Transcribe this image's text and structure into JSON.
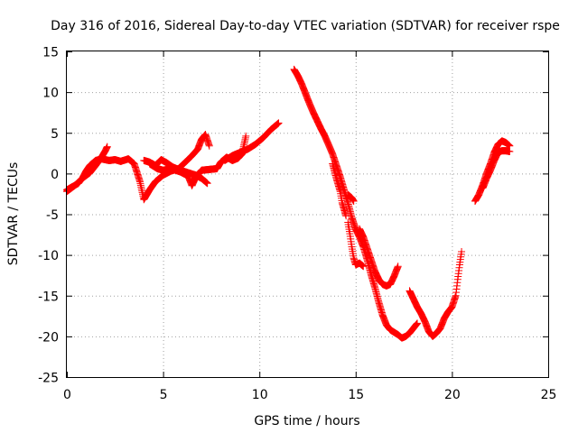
{
  "chart_data": {
    "type": "scatter",
    "title": "Day 316 of 2016, Sidereal Day-to-day VTEC variation (SDTVAR) for receiver rspe",
    "xlabel": "GPS time / hours",
    "ylabel": "SDTVAR / TECUs",
    "xlim": [
      0,
      25
    ],
    "ylim": [
      -25,
      15
    ],
    "xticks": [
      0,
      5,
      10,
      15,
      20,
      25
    ],
    "yticks": [
      -25,
      -20,
      -15,
      -10,
      -5,
      0,
      5,
      10,
      15
    ],
    "grid": true,
    "marker": "plus",
    "color": "#ff0000",
    "series": [
      {
        "points": [
          [
            0.0,
            -2.0
          ],
          [
            0.3,
            -1.6
          ],
          [
            0.6,
            -1.2
          ],
          [
            0.8,
            -0.6
          ],
          [
            1.0,
            0.3
          ],
          [
            1.2,
            1.0
          ],
          [
            1.5,
            1.6
          ],
          [
            1.8,
            1.8
          ],
          [
            2.2,
            1.6
          ],
          [
            2.5,
            1.7
          ],
          [
            2.8,
            1.5
          ],
          [
            3.2,
            1.8
          ],
          [
            3.5,
            1.2
          ],
          [
            3.8,
            -1.0
          ],
          [
            4.0,
            -3.2
          ],
          [
            4.3,
            -2.0
          ],
          [
            4.6,
            -1.0
          ],
          [
            5.0,
            -0.2
          ],
          [
            5.4,
            0.3
          ],
          [
            5.8,
            0.6
          ],
          [
            6.2,
            1.5
          ],
          [
            6.5,
            2.2
          ],
          [
            6.8,
            3.0
          ],
          [
            7.0,
            4.2
          ],
          [
            7.2,
            4.8
          ],
          [
            7.4,
            3.4
          ]
        ]
      },
      {
        "points": [
          [
            0.0,
            -2.2
          ],
          [
            0.4,
            -1.5
          ],
          [
            0.8,
            -0.6
          ],
          [
            1.2,
            0.1
          ],
          [
            1.5,
            1.0
          ],
          [
            1.8,
            2.0
          ],
          [
            2.0,
            2.8
          ],
          [
            2.1,
            3.3
          ]
        ]
      },
      {
        "points": [
          [
            4.0,
            1.6
          ],
          [
            4.3,
            1.4
          ],
          [
            4.6,
            1.0
          ],
          [
            4.9,
            1.7
          ],
          [
            5.2,
            1.3
          ],
          [
            5.5,
            0.8
          ],
          [
            5.9,
            0.4
          ],
          [
            6.3,
            0.1
          ],
          [
            6.7,
            -0.2
          ],
          [
            7.0,
            -0.6
          ],
          [
            7.3,
            -1.2
          ]
        ]
      },
      {
        "points": [
          [
            4.3,
            1.2
          ],
          [
            4.7,
            0.6
          ],
          [
            5.0,
            0.4
          ],
          [
            5.4,
            0.6
          ],
          [
            5.9,
            0.2
          ],
          [
            6.3,
            -0.3
          ],
          [
            6.5,
            -1.5
          ],
          [
            6.7,
            -0.4
          ],
          [
            7.0,
            0.4
          ],
          [
            7.4,
            0.5
          ],
          [
            7.8,
            0.6
          ],
          [
            8.0,
            1.4
          ],
          [
            8.3,
            2.0
          ],
          [
            8.6,
            1.6
          ],
          [
            8.9,
            1.9
          ],
          [
            9.1,
            2.4
          ],
          [
            9.3,
            4.6
          ]
        ]
      },
      {
        "points": [
          [
            8.2,
            1.6
          ],
          [
            8.6,
            2.2
          ],
          [
            9.0,
            2.6
          ],
          [
            9.4,
            3.0
          ],
          [
            9.8,
            3.6
          ],
          [
            10.2,
            4.4
          ],
          [
            10.6,
            5.4
          ],
          [
            11.0,
            6.2
          ]
        ]
      },
      {
        "points": [
          [
            11.8,
            12.8
          ],
          [
            12.0,
            12.0
          ],
          [
            12.2,
            11.0
          ],
          [
            12.4,
            9.8
          ],
          [
            12.6,
            8.6
          ],
          [
            12.8,
            7.5
          ],
          [
            13.0,
            6.5
          ],
          [
            13.2,
            5.5
          ],
          [
            13.4,
            4.6
          ],
          [
            13.6,
            3.5
          ],
          [
            13.8,
            2.4
          ],
          [
            14.0,
            1.0
          ],
          [
            14.2,
            -0.4
          ],
          [
            14.4,
            -2.0
          ],
          [
            14.6,
            -3.6
          ],
          [
            14.8,
            -5.4
          ],
          [
            15.0,
            -6.8
          ],
          [
            15.2,
            -7.8
          ],
          [
            15.4,
            -9.0
          ],
          [
            15.6,
            -10.6
          ],
          [
            15.8,
            -12.4
          ],
          [
            16.0,
            -14.0
          ],
          [
            16.2,
            -15.8
          ],
          [
            16.4,
            -17.4
          ],
          [
            16.6,
            -18.6
          ],
          [
            16.8,
            -19.2
          ],
          [
            17.0,
            -19.5
          ],
          [
            17.2,
            -19.8
          ],
          [
            17.4,
            -20.2
          ],
          [
            17.6,
            -20.0
          ],
          [
            17.8,
            -19.6
          ],
          [
            18.0,
            -19.0
          ],
          [
            18.2,
            -18.4
          ]
        ]
      },
      {
        "points": [
          [
            13.8,
            1.2
          ],
          [
            14.0,
            -0.6
          ],
          [
            14.2,
            -2.2
          ],
          [
            14.3,
            -3.6
          ],
          [
            14.5,
            -5.2
          ]
        ]
      },
      {
        "points": [
          [
            14.6,
            -2.6
          ],
          [
            14.8,
            -3.0
          ],
          [
            14.9,
            -3.4
          ]
        ]
      },
      {
        "points": [
          [
            14.6,
            -6.0
          ],
          [
            14.7,
            -7.4
          ],
          [
            14.8,
            -9.0
          ],
          [
            14.9,
            -10.4
          ],
          [
            15.0,
            -11.2
          ],
          [
            15.2,
            -11.0
          ],
          [
            15.4,
            -11.4
          ]
        ]
      },
      {
        "points": [
          [
            15.2,
            -6.8
          ],
          [
            15.4,
            -7.8
          ],
          [
            15.6,
            -9.2
          ],
          [
            15.8,
            -10.6
          ],
          [
            16.0,
            -12.0
          ],
          [
            16.2,
            -13.0
          ],
          [
            16.4,
            -13.6
          ],
          [
            16.6,
            -13.8
          ],
          [
            16.8,
            -13.6
          ],
          [
            17.0,
            -12.6
          ],
          [
            17.2,
            -11.4
          ]
        ]
      },
      {
        "points": [
          [
            17.8,
            -14.4
          ],
          [
            18.0,
            -15.4
          ],
          [
            18.2,
            -16.4
          ],
          [
            18.4,
            -17.2
          ],
          [
            18.6,
            -18.2
          ],
          [
            18.8,
            -19.4
          ],
          [
            19.0,
            -20.0
          ],
          [
            19.2,
            -19.6
          ],
          [
            19.4,
            -19.0
          ],
          [
            19.6,
            -17.8
          ],
          [
            19.8,
            -17.0
          ],
          [
            20.0,
            -16.4
          ],
          [
            20.2,
            -15.0
          ],
          [
            20.3,
            -13.0
          ],
          [
            20.4,
            -11.2
          ],
          [
            20.5,
            -9.6
          ]
        ]
      },
      {
        "points": [
          [
            21.2,
            -3.4
          ],
          [
            21.4,
            -2.6
          ],
          [
            21.6,
            -1.4
          ],
          [
            21.8,
            0.0
          ],
          [
            22.0,
            1.2
          ],
          [
            22.2,
            2.6
          ],
          [
            22.4,
            3.6
          ],
          [
            22.6,
            4.0
          ],
          [
            22.8,
            3.8
          ],
          [
            23.0,
            3.4
          ]
        ]
      },
      {
        "points": [
          [
            21.6,
            -1.8
          ],
          [
            21.8,
            -0.6
          ],
          [
            22.0,
            0.4
          ],
          [
            22.2,
            1.6
          ],
          [
            22.4,
            2.6
          ],
          [
            22.6,
            2.8
          ],
          [
            22.8,
            2.8
          ],
          [
            23.0,
            2.7
          ]
        ]
      }
    ]
  }
}
